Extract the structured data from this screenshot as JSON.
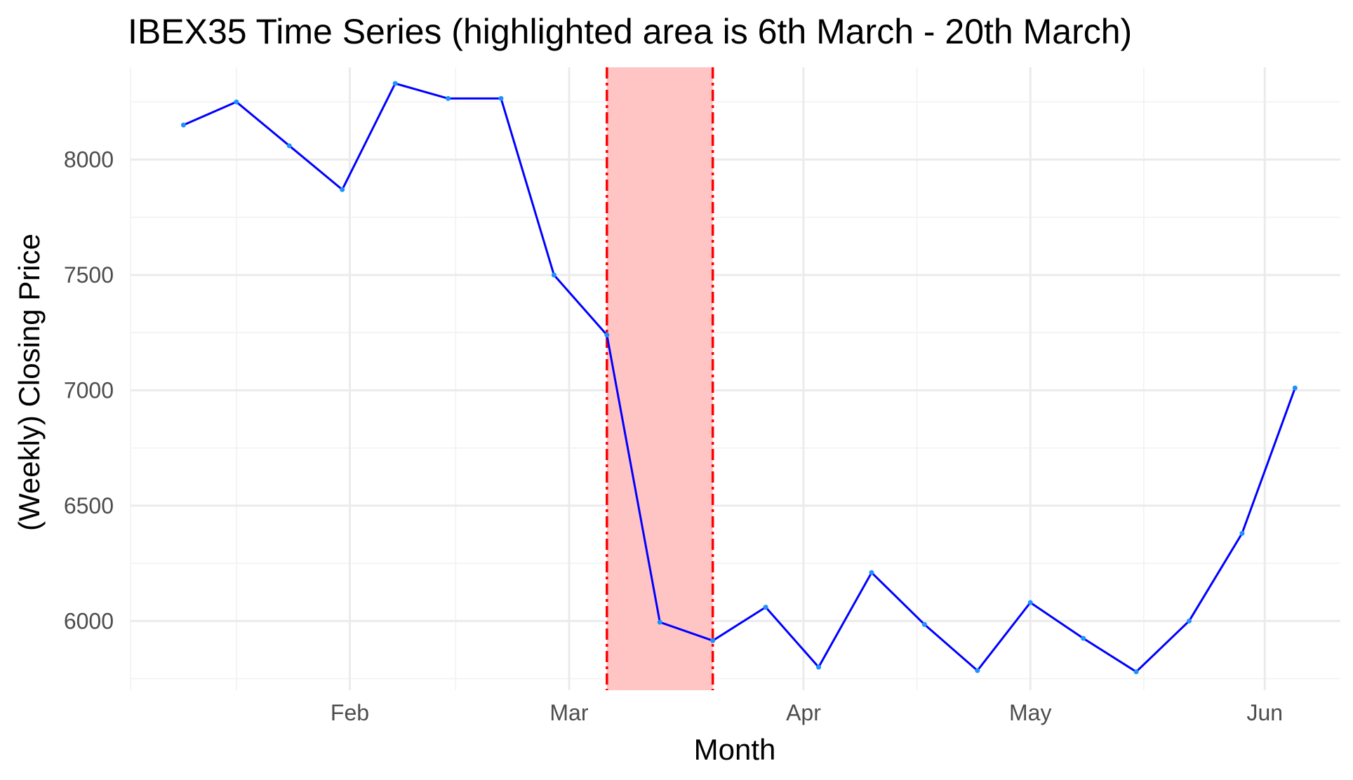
{
  "chart_data": {
    "type": "line",
    "title": "IBEX35 Time Series (highlighted area is 6th March - 20th March)",
    "xlabel": "Month",
    "ylabel": "(Weekly) Closing Price",
    "x_axis_type": "date",
    "xlim": [
      "2020-01-03",
      "2020-06-11"
    ],
    "ylim": [
      5700,
      8400
    ],
    "y_ticks": [
      6000,
      6500,
      7000,
      7500,
      8000
    ],
    "y_minor_ticks": [
      5750,
      6250,
      6750,
      7250,
      7750,
      8250
    ],
    "x_ticks": [
      {
        "date": "2020-02-01",
        "label": "Feb"
      },
      {
        "date": "2020-03-01",
        "label": "Mar"
      },
      {
        "date": "2020-04-01",
        "label": "Apr"
      },
      {
        "date": "2020-05-01",
        "label": "May"
      },
      {
        "date": "2020-06-01",
        "label": "Jun"
      }
    ],
    "x_minor_ticks": [
      "2020-01-03",
      "2020-01-17",
      "2020-02-15",
      "2020-03-16",
      "2020-04-16",
      "2020-05-16"
    ],
    "grid": true,
    "series": [
      {
        "color": "#0000ff",
        "point_color": "#1e90ff",
        "points": [
          {
            "date": "2020-01-10",
            "value": 8150
          },
          {
            "date": "2020-01-17",
            "value": 8250
          },
          {
            "date": "2020-01-24",
            "value": 8060
          },
          {
            "date": "2020-01-31",
            "value": 7870
          },
          {
            "date": "2020-02-07",
            "value": 8330
          },
          {
            "date": "2020-02-14",
            "value": 8265
          },
          {
            "date": "2020-02-21",
            "value": 8265
          },
          {
            "date": "2020-02-28",
            "value": 7500
          },
          {
            "date": "2020-03-06",
            "value": 7240
          },
          {
            "date": "2020-03-13",
            "value": 5995
          },
          {
            "date": "2020-03-20",
            "value": 5915
          },
          {
            "date": "2020-03-27",
            "value": 6060
          },
          {
            "date": "2020-04-03",
            "value": 5800
          },
          {
            "date": "2020-04-10",
            "value": 6210
          },
          {
            "date": "2020-04-17",
            "value": 5985
          },
          {
            "date": "2020-04-24",
            "value": 5785
          },
          {
            "date": "2020-05-01",
            "value": 6080
          },
          {
            "date": "2020-05-08",
            "value": 5925
          },
          {
            "date": "2020-05-15",
            "value": 5780
          },
          {
            "date": "2020-05-22",
            "value": 6000
          },
          {
            "date": "2020-05-29",
            "value": 6380
          },
          {
            "date": "2020-06-05",
            "value": 7010
          }
        ]
      }
    ],
    "highlight": {
      "start": "2020-03-06",
      "end": "2020-03-20",
      "fill_color": "#ffc4c4",
      "line_color": "#ff0000"
    }
  }
}
